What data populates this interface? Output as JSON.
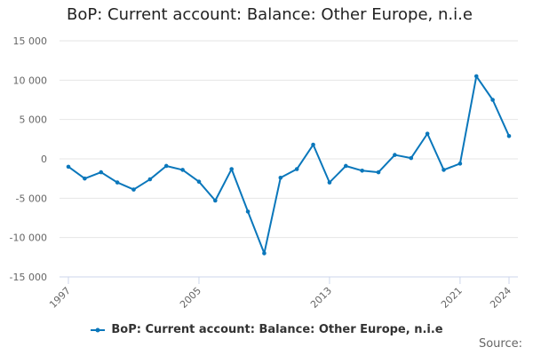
{
  "chart_data": {
    "type": "line",
    "title": "BoP: Current account: Balance: Other Europe, n.i.e",
    "xlabel": "",
    "ylabel": "",
    "x": [
      1997,
      1998,
      1999,
      2000,
      2001,
      2002,
      2003,
      2004,
      2005,
      2006,
      2007,
      2008,
      2009,
      2010,
      2011,
      2012,
      2013,
      2014,
      2015,
      2016,
      2017,
      2018,
      2019,
      2020,
      2021,
      2022,
      2023,
      2024
    ],
    "x_tick_labels": [
      "1997",
      "2005",
      "2013",
      "2021",
      "2024"
    ],
    "x_tick_values": [
      1997,
      2005,
      2013,
      2021,
      2024
    ],
    "xlim": [
      1997,
      2024
    ],
    "ylim": [
      -15000,
      15000
    ],
    "y_ticks": [
      15000,
      10000,
      5000,
      0,
      -5000,
      -10000,
      -15000
    ],
    "y_tick_labels": [
      "15 000",
      "10 000",
      "5 000",
      "0",
      "-5 000",
      "-10 000",
      "-15 000"
    ],
    "grid": true,
    "legend_position": "bottom-center",
    "series": [
      {
        "name": "BoP: Current account: Balance: Other Europe, n.i.e",
        "color": "#0a77bb",
        "values": [
          -1000,
          -2500,
          -1700,
          -3000,
          -3900,
          -2600,
          -900,
          -1400,
          -2900,
          -5300,
          -1300,
          -6700,
          -12000,
          -2400,
          -1300,
          1800,
          -3000,
          -900,
          -1500,
          -1700,
          500,
          100,
          3200,
          -1400,
          -600,
          10500,
          7500,
          2900
        ]
      }
    ]
  },
  "source_label": "Source:"
}
